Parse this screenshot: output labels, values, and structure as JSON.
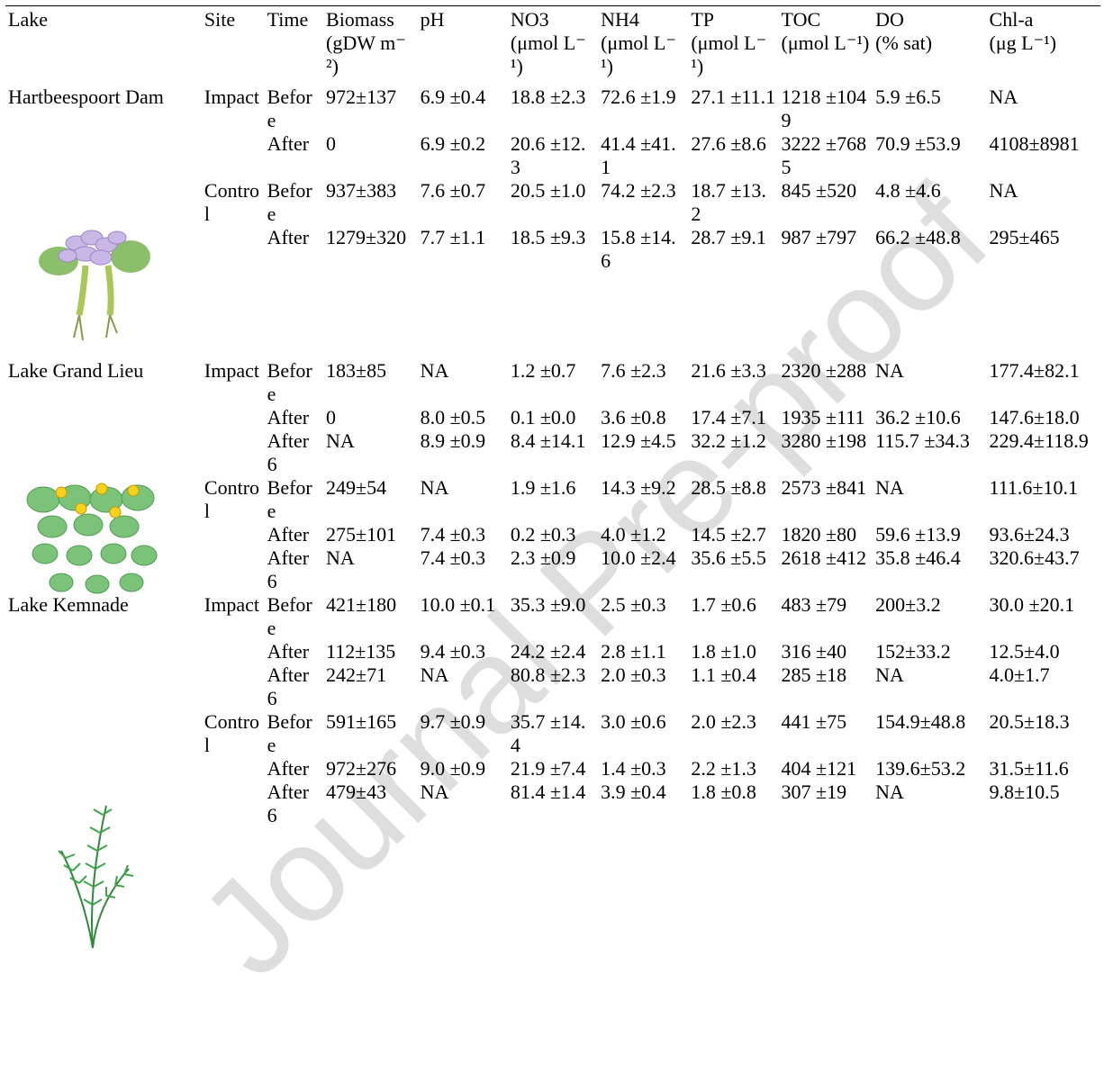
{
  "table": {
    "columns": [
      {
        "name": "Lake"
      },
      {
        "name": "Site"
      },
      {
        "name": "Time"
      },
      {
        "name": "Biomass",
        "unit": "(gDW m⁻²)"
      },
      {
        "name": "pH"
      },
      {
        "name": "NO3",
        "unit": "(μmol L⁻¹)"
      },
      {
        "name": "NH4",
        "unit": "(μmol L⁻¹)"
      },
      {
        "name": "TP",
        "unit": "(μmol L⁻¹)"
      },
      {
        "name": "TOC",
        "unit": "(μmol L⁻¹)"
      },
      {
        "name": "DO",
        "unit": "(% sat)"
      },
      {
        "name": "Chl-a",
        "unit": "(μg L⁻¹)"
      }
    ],
    "groups": [
      {
        "lake": "Hartbeespoort Dam",
        "sites": [
          {
            "site": "Impact",
            "rows": [
              {
                "time": "Before",
                "values": [
                  "972±137",
                  "6.9 ±0.4",
                  "18.8 ±2.3",
                  "72.6 ±1.9",
                  "27.1 ±11.1",
                  "1218 ±1049",
                  "5.9 ±6.5",
                  "NA"
                ]
              },
              {
                "time": "After",
                "values": [
                  "0",
                  "6.9 ±0.2",
                  "20.6 ±12.3",
                  "41.4 ±41.1",
                  "27.6 ±8.6",
                  "3222 ±7685",
                  "70.9 ±53.9",
                  "4108±8981"
                ]
              }
            ]
          },
          {
            "site": "Control",
            "rows": [
              {
                "time": "Before",
                "values": [
                  "937±383",
                  "7.6 ±0.7",
                  "20.5 ±1.0",
                  "74.2 ±2.3",
                  "18.7 ±13.2",
                  "845 ±520",
                  "4.8 ±4.6",
                  "NA"
                ]
              },
              {
                "time": "After",
                "values": [
                  "1279±320",
                  "7.7 ±1.1",
                  "18.5 ±9.3",
                  "15.8 ±14.6",
                  "28.7 ±9.1",
                  "987 ±797",
                  "66.2 ±48.8",
                  "295±465"
                ]
              }
            ]
          }
        ]
      },
      {
        "lake": "Lake Grand Lieu",
        "sites": [
          {
            "site": "Impact",
            "rows": [
              {
                "time": "Before",
                "values": [
                  "183±85",
                  "NA",
                  "1.2 ±0.7",
                  "7.6 ±2.3",
                  "21.6 ±3.3",
                  "2320 ±288",
                  "NA",
                  "177.4±82.1"
                ]
              },
              {
                "time": "After",
                "values": [
                  "0",
                  "8.0 ±0.5",
                  "0.1 ±0.0",
                  "3.6 ±0.8",
                  "17.4 ±7.1",
                  "1935 ±111",
                  "36.2 ±10.6",
                  "147.6±18.0"
                ]
              },
              {
                "time": "After 6",
                "values": [
                  "NA",
                  "8.9 ±0.9",
                  "8.4 ±14.1",
                  "12.9 ±4.5",
                  "32.2 ±1.2",
                  "3280 ±198",
                  "115.7 ±34.3",
                  "229.4±118.9"
                ]
              }
            ]
          },
          {
            "site": "Control",
            "rows": [
              {
                "time": "Before",
                "values": [
                  "249±54",
                  "NA",
                  "1.9 ±1.6",
                  "14.3 ±9.2",
                  "28.5 ±8.8",
                  "2573 ±841",
                  "NA",
                  "111.6±10.1"
                ]
              },
              {
                "time": "After",
                "values": [
                  "275±101",
                  "7.4 ±0.3",
                  "0.2 ±0.3",
                  "4.0 ±1.2",
                  "14.5 ±2.7",
                  "1820 ±80",
                  "59.6 ±13.9",
                  "93.6±24.3"
                ]
              },
              {
                "time": "After 6",
                "values": [
                  "NA",
                  "7.4 ±0.3",
                  "2.3 ±0.9",
                  "10.0 ±2.4",
                  "35.6 ±5.5",
                  "2618 ±412",
                  "35.8 ±46.4",
                  "320.6±43.7"
                ]
              }
            ]
          }
        ]
      },
      {
        "lake": "Lake Kemnade",
        "sites": [
          {
            "site": "Impact",
            "rows": [
              {
                "time": "Before",
                "values": [
                  "421±180",
                  "10.0 ±0.1",
                  "35.3 ±9.0",
                  "2.5 ±0.3",
                  "1.7 ±0.6",
                  "483 ±79",
                  "200±3.2",
                  "30.0 ±20.1"
                ]
              },
              {
                "time": "After",
                "values": [
                  "112±135",
                  "9.4 ±0.3",
                  "24.2 ±2.4",
                  "2.8 ±1.1",
                  "1.8 ±1.0",
                  "316 ±40",
                  "152±33.2",
                  "12.5±4.0"
                ]
              },
              {
                "time": "After 6",
                "values": [
                  "242±71",
                  "NA",
                  "80.8 ±2.3",
                  "2.0 ±0.3",
                  "1.1 ±0.4",
                  "285 ±18",
                  "NA",
                  "4.0±1.7"
                ]
              }
            ]
          },
          {
            "site": "Control",
            "rows": [
              {
                "time": "Before",
                "values": [
                  "591±165",
                  "9.7 ±0.9",
                  "35.7 ±14.4",
                  "3.0 ±0.6",
                  "2.0 ±2.3",
                  "441 ±75",
                  "154.9±48.8",
                  "20.5±18.3"
                ]
              },
              {
                "time": "After",
                "values": [
                  "972±276",
                  "9.0 ±0.9",
                  "21.9 ±7.4",
                  "1.4 ±0.3",
                  "2.2 ±1.3",
                  "404 ±121",
                  "139.6±53.2",
                  "31.5±11.6"
                ]
              },
              {
                "time": "After 6",
                "values": [
                  "479±43",
                  "NA",
                  "81.4 ±1.4",
                  "3.9 ±0.4",
                  "1.8 ±0.8",
                  "307 ±19",
                  "NA",
                  "9.8±10.5"
                ]
              }
            ]
          }
        ]
      }
    ]
  },
  "watermark": "Journal Pre-proof"
}
